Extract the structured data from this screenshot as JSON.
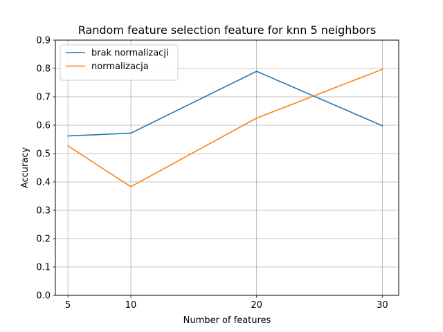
{
  "chart_data": {
    "type": "line",
    "title": "Random feature selection feature for knn 5 neighbors",
    "xlabel": "Number of features",
    "ylabel": "Accuracy",
    "x": [
      5,
      10,
      20,
      30
    ],
    "xticks": [
      "5",
      "10",
      "20",
      "30"
    ],
    "xlim": [
      4,
      31.3
    ],
    "ylim": [
      0,
      0.9
    ],
    "yticks": [
      "0.0",
      "0.1",
      "0.2",
      "0.3",
      "0.4",
      "0.5",
      "0.6",
      "0.7",
      "0.8",
      "0.9"
    ],
    "grid": true,
    "legend_position": "upper-left",
    "series": [
      {
        "name": "brak normalizacji",
        "color": "#1f77b4",
        "values": [
          0.562,
          0.572,
          0.79,
          0.598
        ]
      },
      {
        "name": "normalizacja",
        "color": "#ff7f0e",
        "values": [
          0.527,
          0.383,
          0.625,
          0.797
        ]
      }
    ]
  }
}
